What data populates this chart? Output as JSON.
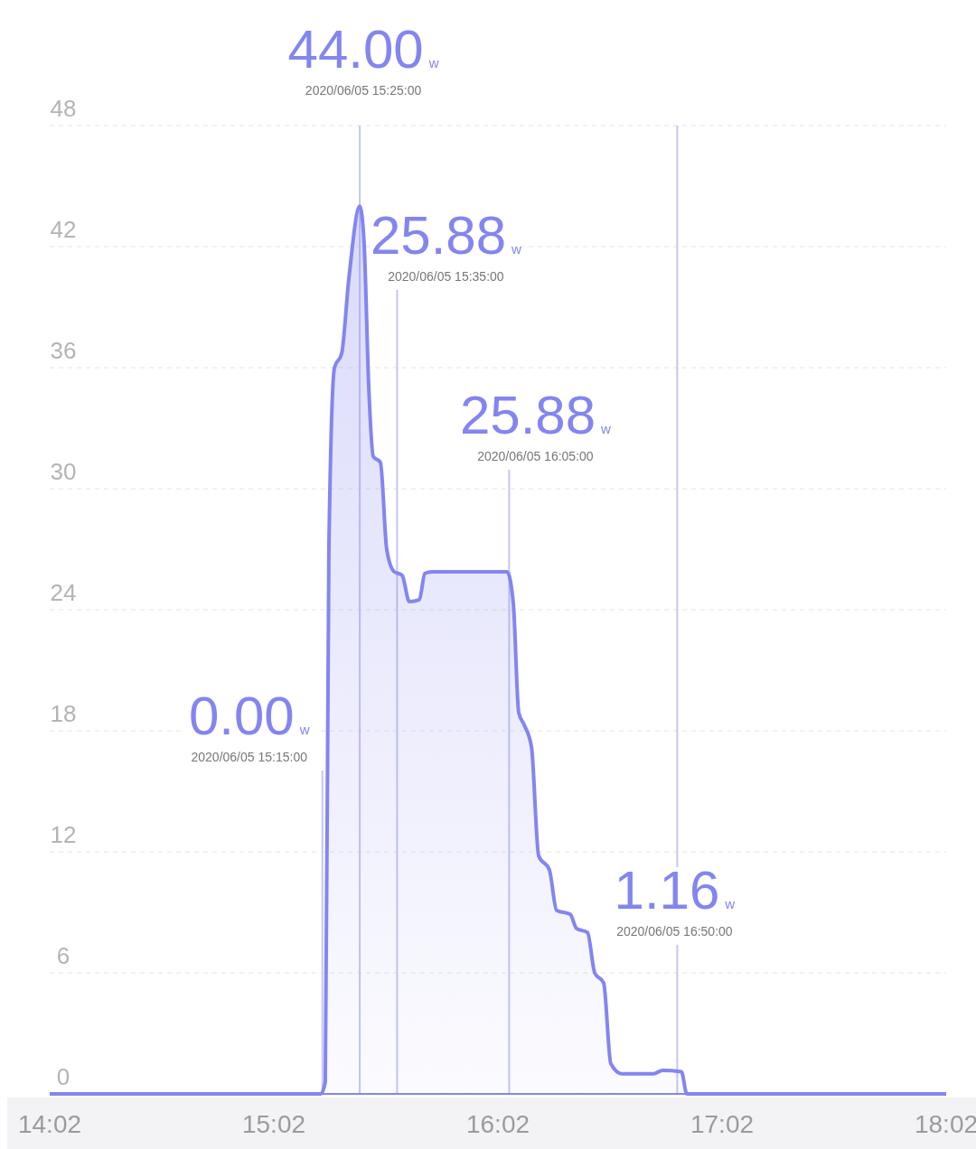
{
  "chart_data": {
    "type": "area",
    "xlim": [
      14.0333,
      18.0333
    ],
    "ylim": [
      0,
      48
    ],
    "xticks": [
      {
        "value": 14.0333,
        "label": "14:02"
      },
      {
        "value": 15.0333,
        "label": "15:02"
      },
      {
        "value": 16.0333,
        "label": "16:02"
      },
      {
        "value": 17.0333,
        "label": "17:02"
      },
      {
        "value": 18.0333,
        "label": "18:02"
      }
    ],
    "yticks": [
      0,
      6,
      12,
      18,
      24,
      30,
      36,
      42,
      48
    ],
    "grid": "y",
    "marker": "none",
    "line_style": "solid",
    "series": [
      {
        "color": "#8385f0",
        "x": [
          14.0333,
          15.243,
          15.263,
          15.279,
          15.304,
          15.336,
          15.368,
          15.417,
          15.436,
          15.457,
          15.477,
          15.509,
          15.537,
          15.569,
          15.606,
          15.638,
          15.683,
          15.707,
          15.739,
          16.074,
          16.102,
          16.126,
          16.15,
          16.183,
          16.215,
          16.263,
          16.295,
          16.356,
          16.384,
          16.433,
          16.465,
          16.505,
          16.537,
          16.586,
          16.727,
          16.767,
          16.852,
          16.876,
          18.0333
        ],
        "values": [
          0,
          0,
          0.6,
          27,
          36,
          36.7,
          40.4,
          44,
          42.2,
          35,
          31.6,
          31.3,
          27,
          25.9,
          25.7,
          24.4,
          24.5,
          25.8,
          25.88,
          25.88,
          24.3,
          18.9,
          18.3,
          17.2,
          11.8,
          11.1,
          9.1,
          8.9,
          8.2,
          8,
          6,
          5.5,
          1.5,
          1,
          1,
          1.16,
          1.1,
          0,
          0
        ]
      }
    ],
    "ref_lines": [
      {
        "axis": "x",
        "value": 15.25,
        "color": "#c4c5f7"
      },
      {
        "axis": "x",
        "value": 15.4167,
        "color": "#c4c5f7"
      },
      {
        "axis": "x",
        "value": 15.5833,
        "color": "#c4c5f7"
      },
      {
        "axis": "x",
        "value": 16.0833,
        "color": "#c4c5f7"
      },
      {
        "axis": "x",
        "value": 16.8333,
        "color": "#c4c5f7"
      }
    ],
    "annotations": [
      "0.00w\n2020/06/05 15:15:00",
      "44.00w\n2020/06/05 15:25:00",
      "25.88w\n2020/06/05 15:35:00",
      "25.88w\n2020/06/05 16:05:00",
      "1.16w\n2020/06/05 16:50:00"
    ]
  }
}
